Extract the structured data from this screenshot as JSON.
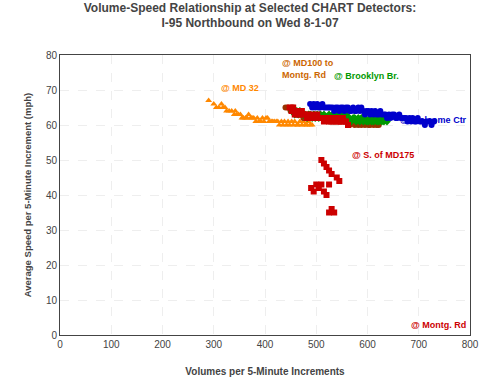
{
  "chart_data": {
    "type": "scatter",
    "title": "Volume-Speed Relationship at Selected CHART Detectors:\nI-95 Northbound on Wed 8-1-07",
    "xlabel": "Volumes per 5-Minute Increments",
    "ylabel": "Average Speed per 5-Minute Increment (mph)",
    "xlim": [
      0,
      800
    ],
    "ylim": [
      0,
      80
    ],
    "xticks": [
      0,
      100,
      200,
      300,
      400,
      500,
      600,
      700,
      800
    ],
    "yticks": [
      0,
      10,
      20,
      30,
      40,
      50,
      60,
      70,
      80
    ],
    "grid": true,
    "annotations": [
      {
        "text": "@ MD100 to\nMontg. Rd",
        "x": 430,
        "y": 76,
        "color": "#CC6600"
      },
      {
        "text": "@ Brooklyn Br.",
        "x": 530,
        "y": 74,
        "color": "#009900"
      },
      {
        "text": "@ MD 32",
        "x": 310,
        "y": 70.5,
        "color": "#FF8800"
      },
      {
        "text": "@ Welcome Ctr",
        "x": 660,
        "y": 61.5,
        "color": "#0000CC"
      },
      {
        "text": "@ S. of MD175",
        "x": 565,
        "y": 51.5,
        "color": "#CC0000"
      },
      {
        "text": "@ Montg. Rd",
        "x": 680,
        "y": 3,
        "color": "#CC0000"
      }
    ],
    "series": [
      {
        "color": "#FF8800",
        "marker": "triangle-up",
        "x": [
          290,
          300,
          305,
          310,
          315,
          318,
          322,
          325,
          330,
          335,
          340,
          342,
          345,
          348,
          352,
          355,
          358,
          362,
          365,
          368,
          372,
          375,
          378,
          382,
          385,
          388,
          392,
          395,
          398,
          402,
          405,
          408,
          412,
          415,
          418,
          422,
          425,
          428,
          432,
          435,
          438,
          442,
          445,
          448,
          452,
          455,
          458,
          462,
          465,
          468,
          472,
          475,
          478,
          482,
          485,
          488,
          492
        ],
        "values": [
          67,
          66,
          65,
          65,
          66,
          65,
          65,
          64,
          64,
          64,
          63,
          64,
          63,
          63,
          63,
          62,
          62,
          62,
          62,
          63,
          62,
          62,
          62,
          61,
          62,
          61,
          61,
          62,
          61,
          62,
          62,
          61,
          61,
          61,
          61,
          61,
          61,
          60,
          61,
          60,
          61,
          60,
          61,
          60,
          61,
          60,
          61,
          60,
          60,
          61,
          60,
          61,
          60,
          60,
          61,
          60,
          60
        ]
      },
      {
        "color": "#993300",
        "marker": "circle",
        "x": [
          440,
          445,
          450,
          455,
          458,
          462,
          465,
          468,
          472,
          475,
          478,
          482,
          485,
          488,
          492,
          495,
          498,
          502,
          505,
          508,
          512,
          515,
          518,
          522,
          525,
          528,
          532,
          535,
          538,
          542,
          545,
          548,
          552,
          555,
          558,
          562,
          565,
          568,
          572,
          575,
          578,
          582,
          585,
          588,
          592,
          595,
          598,
          602,
          605,
          608,
          612,
          615,
          618,
          622
        ],
        "values": [
          65,
          65,
          64,
          65,
          64,
          63,
          63,
          63,
          63,
          62,
          63,
          62,
          62,
          63,
          62,
          62,
          63,
          62,
          62,
          63,
          62,
          62,
          62,
          62,
          61,
          62,
          61,
          62,
          61,
          62,
          61,
          61,
          62,
          61,
          61,
          61,
          60,
          61,
          61,
          60,
          61,
          60,
          61,
          60,
          61,
          60,
          61,
          60,
          60,
          61,
          60,
          61,
          60,
          60
        ]
      },
      {
        "color": "#009900",
        "marker": "diamond",
        "x": [
          452,
          458,
          462,
          465,
          468,
          472,
          475,
          478,
          482,
          485,
          488,
          492,
          495,
          498,
          502,
          505,
          508,
          512,
          515,
          518,
          522,
          525,
          528,
          532,
          535,
          538,
          542,
          545,
          548,
          552,
          555,
          558,
          562,
          565,
          568,
          572,
          575,
          578,
          582,
          585,
          588,
          592,
          595,
          598,
          602,
          605,
          608,
          612,
          615,
          618,
          622,
          625,
          628,
          632,
          635,
          638
        ],
        "values": [
          64,
          63,
          64,
          63,
          64,
          63,
          63,
          63,
          62,
          63,
          63,
          62,
          63,
          62,
          63,
          62,
          63,
          62,
          63,
          62,
          62,
          63,
          62,
          63,
          62,
          63,
          62,
          62,
          63,
          62,
          62,
          63,
          62,
          62,
          61,
          62,
          62,
          61,
          62,
          61,
          62,
          61,
          62,
          61,
          61,
          62,
          61,
          61,
          62,
          61,
          61,
          62,
          61,
          61,
          62,
          61
        ]
      },
      {
        "color": "#0000CC",
        "marker": "circle",
        "x": [
          488,
          492,
          495,
          498,
          502,
          505,
          508,
          512,
          515,
          518,
          522,
          525,
          528,
          532,
          535,
          538,
          542,
          545,
          548,
          552,
          555,
          558,
          562,
          565,
          568,
          572,
          575,
          578,
          582,
          585,
          588,
          592,
          595,
          598,
          602,
          605,
          608,
          612,
          615,
          618,
          622,
          625,
          628,
          632,
          635,
          638,
          642,
          645,
          648,
          652,
          655,
          658,
          662,
          665,
          668,
          672,
          675,
          678,
          682,
          685,
          688,
          692,
          695,
          698,
          702,
          705,
          708,
          712,
          715,
          718,
          722,
          725,
          728,
          730
        ],
        "values": [
          66,
          65,
          66,
          65,
          66,
          65,
          65,
          66,
          65,
          65,
          65,
          65,
          65,
          65,
          64,
          65,
          65,
          64,
          65,
          65,
          64,
          65,
          65,
          64,
          64,
          65,
          64,
          64,
          65,
          64,
          65,
          64,
          63,
          64,
          64,
          63,
          64,
          63,
          64,
          63,
          63,
          64,
          63,
          63,
          63,
          62,
          63,
          62,
          63,
          63,
          62,
          62,
          63,
          62,
          62,
          62,
          62,
          61,
          62,
          61,
          62,
          61,
          61,
          62,
          61,
          61,
          61,
          60,
          61,
          61,
          61,
          60,
          61,
          61
        ]
      },
      {
        "color": "#CC0000",
        "marker": "square",
        "x": [
          448,
          452,
          455,
          458,
          462,
          465,
          468,
          472,
          475,
          478,
          482,
          485,
          488,
          492,
          495,
          498,
          502,
          505,
          508,
          512,
          515,
          518,
          522,
          525,
          528,
          532,
          535,
          538,
          542,
          545,
          548,
          552,
          555,
          558,
          562,
          510,
          515,
          520,
          525,
          530,
          540,
          545,
          500,
          505,
          490,
          495,
          510,
          520,
          515,
          525,
          530,
          535,
          525
        ],
        "values": [
          65,
          64,
          65,
          63,
          64,
          63,
          63,
          64,
          63,
          63,
          62,
          63,
          62,
          63,
          62,
          62,
          63,
          62,
          62,
          62,
          61,
          62,
          62,
          61,
          62,
          61,
          62,
          61,
          62,
          61,
          61,
          62,
          61,
          61,
          60,
          50,
          49,
          48,
          47,
          46,
          45,
          44,
          43,
          42,
          42,
          41,
          43,
          40,
          41,
          43,
          36,
          35,
          35
        ]
      }
    ]
  }
}
